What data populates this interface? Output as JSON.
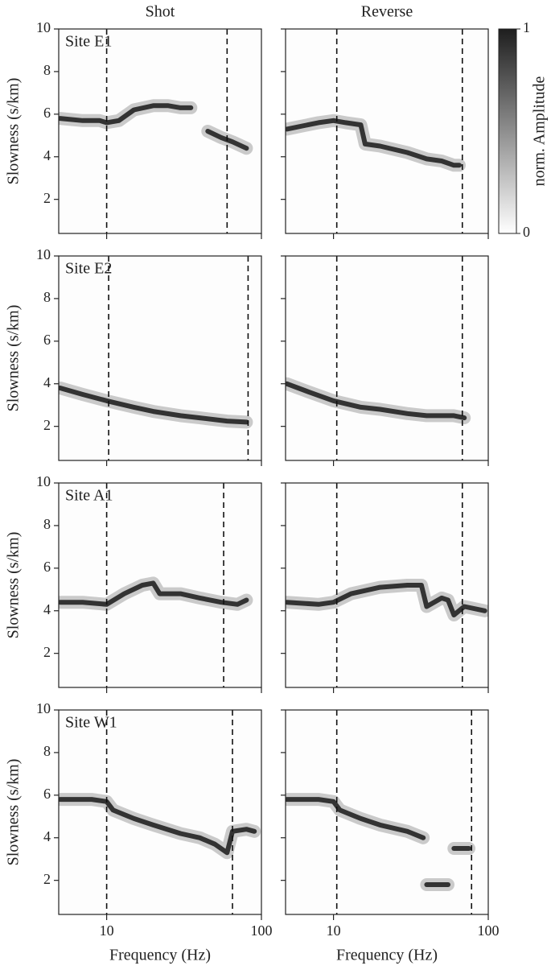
{
  "chart_data": [
    {
      "type": "line",
      "title": "Shot",
      "annotation": "Site E1",
      "ylabel": "Slowness (s/km)",
      "log_x": true,
      "xlim": [
        4.9,
        100
      ],
      "xticks": [
        10,
        100
      ],
      "ylim": [
        0.4,
        10
      ],
      "yticks": [
        2,
        4,
        6,
        8,
        10
      ],
      "show_ytick_labels": true,
      "show_xtick_labels": false,
      "reference_x": [
        10,
        60
      ],
      "series": [
        {
          "color": "#333333",
          "x": [
            5,
            7,
            9,
            10,
            12,
            15,
            20,
            25,
            30,
            35,
            35,
            45,
            55,
            65,
            80
          ],
          "values": [
            5.8,
            5.7,
            5.7,
            5.6,
            5.7,
            6.2,
            6.4,
            6.4,
            6.3,
            6.3,
            null,
            5.2,
            4.9,
            4.7,
            4.4
          ]
        }
      ]
    },
    {
      "type": "line",
      "title": "Reverse",
      "log_x": true,
      "xlim": [
        4.9,
        100
      ],
      "xticks": [
        10,
        100
      ],
      "ylim": [
        0.4,
        10
      ],
      "yticks": [
        2,
        4,
        6,
        8,
        10
      ],
      "show_ytick_labels": false,
      "show_xtick_labels": false,
      "reference_x": [
        10.5,
        68
      ],
      "series": [
        {
          "color": "#333333",
          "x": [
            5,
            8,
            10,
            12,
            15,
            16,
            20,
            30,
            40,
            50,
            60,
            65
          ],
          "values": [
            5.3,
            5.6,
            5.7,
            5.6,
            5.5,
            4.6,
            4.5,
            4.2,
            3.9,
            3.8,
            3.6,
            3.6
          ]
        }
      ]
    },
    {
      "type": "line",
      "annotation": "Site E2",
      "ylabel": "Slowness (s/km)",
      "log_x": true,
      "xlim": [
        4.9,
        100
      ],
      "xticks": [
        10,
        100
      ],
      "ylim": [
        0.4,
        10
      ],
      "yticks": [
        2,
        4,
        6,
        8,
        10
      ],
      "show_ytick_labels": true,
      "show_xtick_labels": false,
      "reference_x": [
        10.3,
        82
      ],
      "series": [
        {
          "color": "#333333",
          "x": [
            5,
            7,
            10,
            15,
            20,
            30,
            40,
            60,
            80
          ],
          "values": [
            3.8,
            3.5,
            3.2,
            2.9,
            2.7,
            2.5,
            2.4,
            2.25,
            2.2
          ]
        }
      ]
    },
    {
      "type": "line",
      "log_x": true,
      "xlim": [
        4.9,
        100
      ],
      "xticks": [
        10,
        100
      ],
      "ylim": [
        0.4,
        10
      ],
      "yticks": [
        2,
        4,
        6,
        8,
        10
      ],
      "show_ytick_labels": false,
      "show_xtick_labels": false,
      "reference_x": [
        10.5,
        68
      ],
      "series": [
        {
          "color": "#333333",
          "x": [
            5,
            7,
            10,
            15,
            20,
            30,
            40,
            60,
            70
          ],
          "values": [
            4.0,
            3.6,
            3.2,
            2.9,
            2.8,
            2.6,
            2.5,
            2.5,
            2.4
          ]
        }
      ]
    },
    {
      "type": "line",
      "annotation": "Site A1",
      "ylabel": "Slowness (s/km)",
      "log_x": true,
      "xlim": [
        4.9,
        100
      ],
      "xticks": [
        10,
        100
      ],
      "ylim": [
        0.4,
        10
      ],
      "yticks": [
        2,
        4,
        6,
        8,
        10
      ],
      "show_ytick_labels": true,
      "show_xtick_labels": false,
      "reference_x": [
        10,
        57
      ],
      "series": [
        {
          "color": "#333333",
          "x": [
            5,
            7,
            10,
            13,
            17,
            20,
            22,
            30,
            40,
            55,
            70,
            80
          ],
          "values": [
            4.4,
            4.4,
            4.3,
            4.8,
            5.2,
            5.3,
            4.8,
            4.8,
            4.6,
            4.4,
            4.3,
            4.5
          ]
        }
      ]
    },
    {
      "type": "line",
      "log_x": true,
      "xlim": [
        4.9,
        100
      ],
      "xticks": [
        10,
        100
      ],
      "ylim": [
        0.4,
        10
      ],
      "yticks": [
        2,
        4,
        6,
        8,
        10
      ],
      "show_ytick_labels": false,
      "show_xtick_labels": false,
      "reference_x": [
        10.5,
        68
      ],
      "series": [
        {
          "color": "#333333",
          "x": [
            5,
            8,
            10,
            13,
            20,
            30,
            37,
            40,
            50,
            55,
            60,
            70,
            95
          ],
          "values": [
            4.4,
            4.3,
            4.4,
            4.8,
            5.1,
            5.2,
            5.2,
            4.2,
            4.6,
            4.5,
            3.8,
            4.2,
            4.0
          ]
        }
      ]
    },
    {
      "type": "line",
      "annotation": "Site W1",
      "ylabel": "Slowness (s/km)",
      "xlabel": "Frequency (Hz)",
      "log_x": true,
      "xlim": [
        4.9,
        100
      ],
      "xticks": [
        10,
        100
      ],
      "ylim": [
        0.4,
        10
      ],
      "yticks": [
        2,
        4,
        6,
        8,
        10
      ],
      "show_ytick_labels": true,
      "show_xtick_labels": true,
      "reference_x": [
        10,
        65
      ],
      "series": [
        {
          "color": "#333333",
          "x": [
            5,
            8,
            10,
            11,
            15,
            20,
            30,
            40,
            50,
            60,
            65,
            80,
            90
          ],
          "values": [
            5.8,
            5.8,
            5.7,
            5.3,
            4.9,
            4.6,
            4.2,
            4.0,
            3.7,
            3.3,
            4.3,
            4.4,
            4.3
          ]
        }
      ]
    },
    {
      "type": "line",
      "xlabel": "Frequency (Hz)",
      "log_x": true,
      "xlim": [
        4.9,
        100
      ],
      "xticks": [
        10,
        100
      ],
      "ylim": [
        0.4,
        10
      ],
      "yticks": [
        2,
        4,
        6,
        8,
        10
      ],
      "show_ytick_labels": false,
      "show_xtick_labels": true,
      "reference_x": [
        10.5,
        78
      ],
      "series": [
        {
          "color": "#333333",
          "x": [
            5,
            8,
            10,
            11,
            15,
            20,
            30,
            38,
            39,
            40,
            55,
            58,
            60,
            75
          ],
          "values": [
            5.8,
            5.8,
            5.7,
            5.3,
            4.9,
            4.6,
            4.3,
            4.0,
            null,
            1.8,
            1.8,
            null,
            3.5,
            3.5
          ]
        }
      ]
    },
    {
      "type": "colorbar",
      "label": "norm. Amplitude",
      "ylim": [
        0,
        1
      ],
      "yticks": [
        0,
        1
      ],
      "colors": [
        "#ffffff",
        "#1e1e1e"
      ]
    }
  ]
}
